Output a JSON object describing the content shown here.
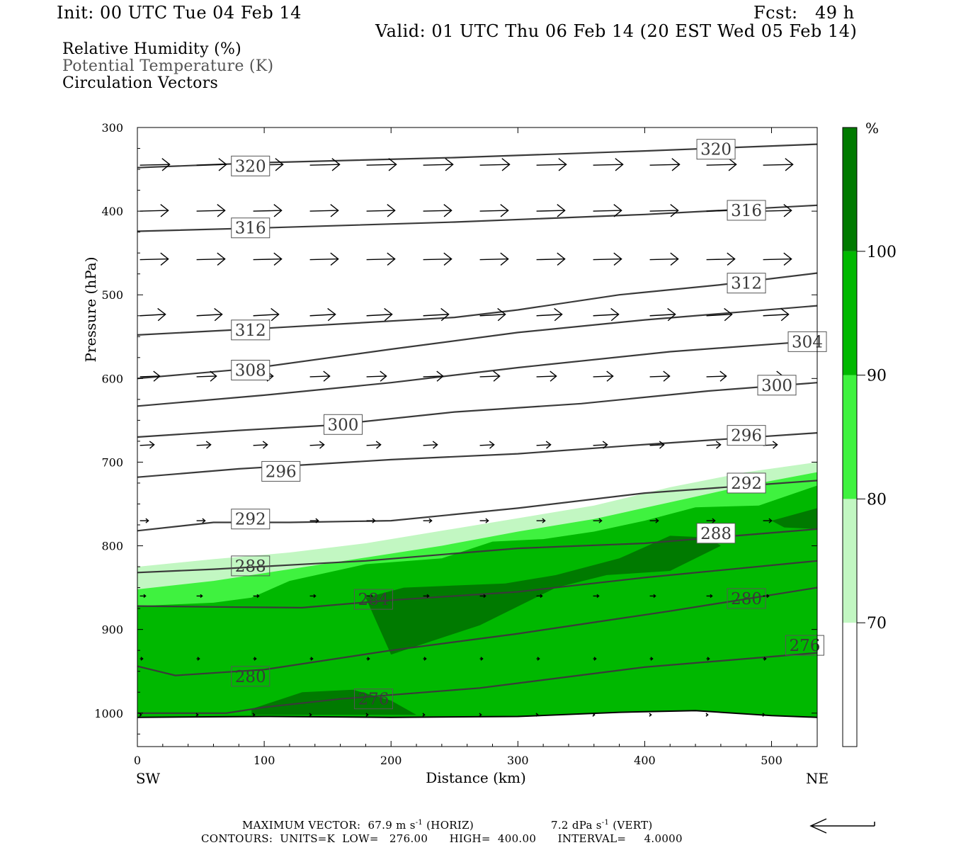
{
  "header": {
    "init": "Init: 00 UTC Tue 04 Feb 14",
    "fcst": "Fcst:   49 h",
    "valid": "Valid: 01 UTC Thu 06 Feb 14 (20 EST Wed 05 Feb 14)"
  },
  "fields": [
    {
      "label": "Relative Humidity (%)",
      "color": "#000000"
    },
    {
      "label": "Potential Temperature (K)",
      "color": "#555555"
    },
    {
      "label": "Circulation Vectors",
      "color": "#000000"
    }
  ],
  "footer": {
    "max_vector": "MAXIMUM VECTOR:  67.9 m s",
    "max_vector_exp": "-1",
    "horiz": "(HORIZ)",
    "vert_value": "7.2 dPa s",
    "vert_exp": "-1",
    "vert": "(VERT)",
    "contours": "CONTOURS:  UNITS=K  LOW=   276.00      HIGH=  400.00      INTERVAL=     4.0000"
  },
  "chart_data": {
    "type": "cross-section",
    "xlabel": "Distance (km)",
    "ylabel": "Pressure (hPa)",
    "xlim": [
      0,
      536
    ],
    "ylim": [
      1040,
      300
    ],
    "x_ticks": [
      0,
      100,
      200,
      300,
      400,
      500
    ],
    "y_ticks": [
      300,
      400,
      500,
      600,
      700,
      800,
      900,
      1000
    ],
    "left_end_label": "SW",
    "right_end_label": "NE",
    "colorbar": {
      "unit": "%",
      "levels": [
        70,
        80,
        90,
        100
      ],
      "colors": [
        "#ffffff",
        "#c2f7c2",
        "#3ff23f",
        "#00b800",
        "#007a00"
      ]
    },
    "rh_regions": [
      {
        "level": "80-90",
        "color": "#c2f7c2",
        "top": [
          [
            0,
            825
          ],
          [
            60,
            816
          ],
          [
            120,
            808
          ],
          [
            180,
            797
          ],
          [
            240,
            782
          ],
          [
            300,
            767
          ],
          [
            360,
            752
          ],
          [
            420,
            730
          ],
          [
            480,
            712
          ],
          [
            536,
            700
          ]
        ]
      },
      {
        "level": "90-100",
        "color": "#3ff23f",
        "top": [
          [
            0,
            852
          ],
          [
            60,
            842
          ],
          [
            120,
            828
          ],
          [
            180,
            814
          ],
          [
            240,
            800
          ],
          [
            300,
            783
          ],
          [
            360,
            768
          ],
          [
            420,
            748
          ],
          [
            480,
            728
          ],
          [
            536,
            712
          ]
        ]
      },
      {
        "level": ">=100",
        "color": "#00b800",
        "top": [
          [
            0,
            872
          ],
          [
            60,
            868
          ],
          [
            90,
            862
          ],
          [
            120,
            842
          ],
          [
            180,
            822
          ],
          [
            240,
            815
          ],
          [
            280,
            795
          ],
          [
            320,
            792
          ],
          [
            360,
            783
          ],
          [
            400,
            770
          ],
          [
            440,
            754
          ],
          [
            490,
            752
          ],
          [
            536,
            728
          ]
        ]
      }
    ],
    "rh_saturated_cores": [
      [
        [
          180,
          862
        ],
        [
          210,
          850
        ],
        [
          290,
          845
        ],
        [
          330,
          835
        ],
        [
          380,
          815
        ],
        [
          420,
          788
        ],
        [
          450,
          790
        ],
        [
          460,
          800
        ],
        [
          420,
          830
        ],
        [
          370,
          835
        ],
        [
          330,
          850
        ],
        [
          270,
          895
        ],
        [
          200,
          930
        ]
      ],
      [
        [
          90,
          995
        ],
        [
          130,
          975
        ],
        [
          170,
          972
        ],
        [
          200,
          985
        ],
        [
          220,
          1002
        ],
        [
          90,
          1002
        ]
      ],
      [
        [
          500,
          770
        ],
        [
          536,
          755
        ],
        [
          536,
          780
        ],
        [
          510,
          778
        ]
      ]
    ],
    "ground": [
      [
        0,
        1005
      ],
      [
        100,
        1004
      ],
      [
        200,
        1005
      ],
      [
        300,
        1004
      ],
      [
        380,
        999
      ],
      [
        440,
        997
      ],
      [
        500,
        1003
      ],
      [
        536,
        1005
      ]
    ],
    "theta_contours": [
      {
        "value": 276,
        "points": [
          [
            0,
            1000
          ],
          [
            70,
            1000
          ],
          [
            100,
            993
          ],
          [
            160,
            983
          ],
          [
            270,
            970
          ],
          [
            400,
            945
          ],
          [
            536,
            928
          ]
        ],
        "labels": [
          [
            170,
            983
          ],
          [
            510,
            919
          ]
        ]
      },
      {
        "value": 280,
        "points": [
          [
            0,
            944
          ],
          [
            30,
            955
          ],
          [
            100,
            948
          ],
          [
            200,
            925
          ],
          [
            300,
            905
          ],
          [
            420,
            878
          ],
          [
            536,
            850
          ]
        ],
        "labels": [
          [
            73,
            956
          ],
          [
            464,
            863
          ]
        ]
      },
      {
        "value": 284,
        "points": [
          [
            0,
            872
          ],
          [
            60,
            873
          ],
          [
            130,
            874
          ],
          [
            200,
            865
          ],
          [
            300,
            855
          ],
          [
            400,
            838
          ],
          [
            536,
            818
          ]
        ],
        "labels": [
          [
            170,
            864
          ]
        ]
      },
      {
        "value": 288,
        "points": [
          [
            0,
            832
          ],
          [
            60,
            828
          ],
          [
            120,
            823
          ],
          [
            180,
            818
          ],
          [
            300,
            803
          ],
          [
            400,
            797
          ],
          [
            536,
            780
          ]
        ],
        "labels": [
          [
            73,
            824
          ],
          [
            440,
            785
          ]
        ]
      },
      {
        "value": 292,
        "points": [
          [
            0,
            782
          ],
          [
            60,
            772
          ],
          [
            120,
            772
          ],
          [
            200,
            770
          ],
          [
            300,
            755
          ],
          [
            400,
            737
          ],
          [
            536,
            722
          ]
        ],
        "labels": [
          [
            73,
            768
          ],
          [
            464,
            725
          ]
        ]
      },
      {
        "value": 296,
        "points": [
          [
            0,
            718
          ],
          [
            80,
            708
          ],
          [
            200,
            697
          ],
          [
            300,
            690
          ],
          [
            400,
            679
          ],
          [
            536,
            665
          ]
        ],
        "labels": [
          [
            97,
            711
          ],
          [
            464,
            668
          ]
        ]
      },
      {
        "value": 300,
        "points": [
          [
            0,
            670
          ],
          [
            80,
            662
          ],
          [
            150,
            656
          ],
          [
            250,
            640
          ],
          [
            350,
            630
          ],
          [
            450,
            615
          ],
          [
            536,
            605
          ]
        ],
        "labels": [
          [
            146,
            655
          ],
          [
            488,
            608
          ]
        ]
      },
      {
        "value": 304,
        "points": [
          [
            0,
            633
          ],
          [
            100,
            620
          ],
          [
            200,
            605
          ],
          [
            300,
            587
          ],
          [
            420,
            568
          ],
          [
            536,
            555
          ]
        ],
        "labels": [
          [
            512,
            556
          ]
        ]
      },
      {
        "value": 308,
        "points": [
          [
            0,
            600
          ],
          [
            90,
            588
          ],
          [
            200,
            565
          ],
          [
            300,
            545
          ],
          [
            400,
            530
          ],
          [
            536,
            513
          ]
        ],
        "labels": [
          [
            73,
            590
          ]
        ]
      },
      {
        "value": 312,
        "points": [
          [
            0,
            548
          ],
          [
            100,
            540
          ],
          [
            250,
            527
          ],
          [
            300,
            518
          ],
          [
            380,
            500
          ],
          [
            460,
            488
          ],
          [
            536,
            474
          ]
        ],
        "labels": [
          [
            73,
            542
          ],
          [
            464,
            486
          ]
        ]
      },
      {
        "value": 316,
        "points": [
          [
            0,
            424
          ],
          [
            100,
            420
          ],
          [
            250,
            413
          ],
          [
            400,
            404
          ],
          [
            536,
            393
          ]
        ],
        "labels": [
          [
            73,
            420
          ],
          [
            464,
            399
          ]
        ]
      },
      {
        "value": 320,
        "points": [
          [
            0,
            348
          ],
          [
            100,
            342
          ],
          [
            250,
            336
          ],
          [
            400,
            328
          ],
          [
            536,
            320
          ]
        ],
        "labels": [
          [
            73,
            346
          ],
          [
            440,
            326
          ]
        ]
      }
    ],
    "vector_rows": [
      {
        "p": 345,
        "dx": 42,
        "dy": -1
      },
      {
        "p": 400,
        "dx": 40,
        "dy": -1
      },
      {
        "p": 458,
        "dx": 40,
        "dy": -1
      },
      {
        "p": 525,
        "dx": 36,
        "dy": -2
      },
      {
        "p": 598,
        "dx": 28,
        "dy": -1
      },
      {
        "p": 680,
        "dx": 20,
        "dy": -1
      },
      {
        "p": 770,
        "dx": 12,
        "dy": 0
      },
      {
        "p": 860,
        "dx": 8,
        "dy": 0
      },
      {
        "p": 935,
        "dx": 4,
        "dy": 0
      },
      {
        "p": 1002,
        "dx": 2,
        "dy": 0
      }
    ]
  }
}
